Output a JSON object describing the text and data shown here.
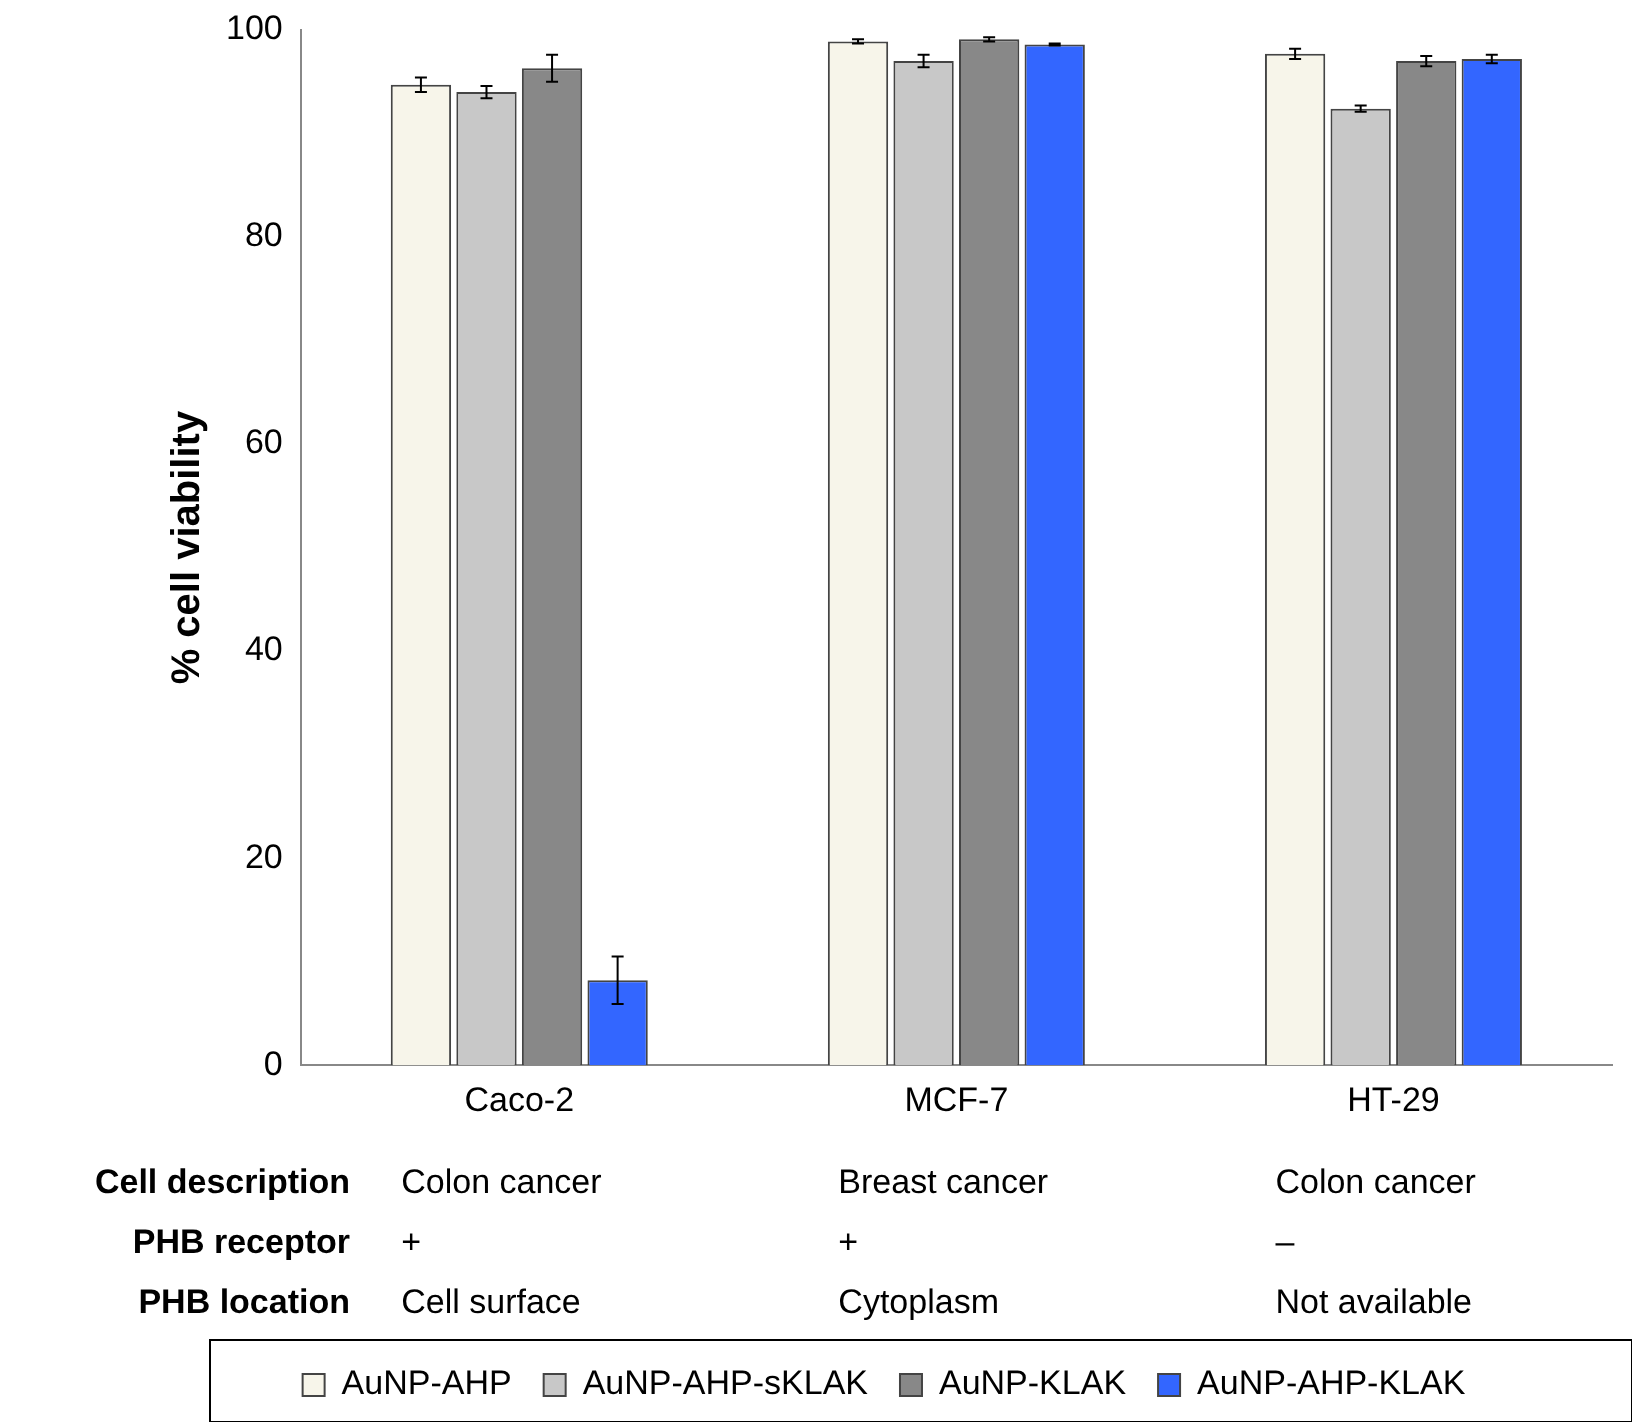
{
  "chart_data": {
    "type": "bar",
    "ylabel": "% cell viability",
    "categories": [
      "Caco-2",
      "MCF-7",
      "HT-29"
    ],
    "series": [
      {
        "name": "AuNP-AHP",
        "color": "#f7f5ea",
        "values": [
          94.7,
          98.9,
          97.7
        ],
        "errors": [
          0.7,
          0.2,
          0.5
        ]
      },
      {
        "name": "AuNP-AHP-sKLAK",
        "color": "#c8c8c8",
        "values": [
          94.0,
          97.0,
          92.4
        ],
        "errors": [
          0.6,
          0.6,
          0.3
        ]
      },
      {
        "name": "AuNP-KLAK",
        "color": "#888888",
        "values": [
          96.3,
          99.1,
          97.0
        ],
        "errors": [
          1.3,
          0.2,
          0.5
        ]
      },
      {
        "name": "AuNP-AHP-KLAK",
        "color": "#3366ff",
        "values": [
          8.2,
          98.6,
          97.2
        ],
        "errors": [
          2.3,
          0.1,
          0.4
        ]
      }
    ],
    "ylim": [
      0,
      100
    ],
    "yticks": [
      0,
      20,
      40,
      60,
      80,
      100
    ],
    "grid": false,
    "legend": "bottom",
    "annotations": [
      "Cell description",
      "Colon cancer",
      "Breast cancer",
      "Colon cancer",
      "PHB receptor",
      "+",
      "+",
      "–",
      "PHB location",
      "Cell surface",
      "Cytoplasm",
      "Not available"
    ]
  }
}
